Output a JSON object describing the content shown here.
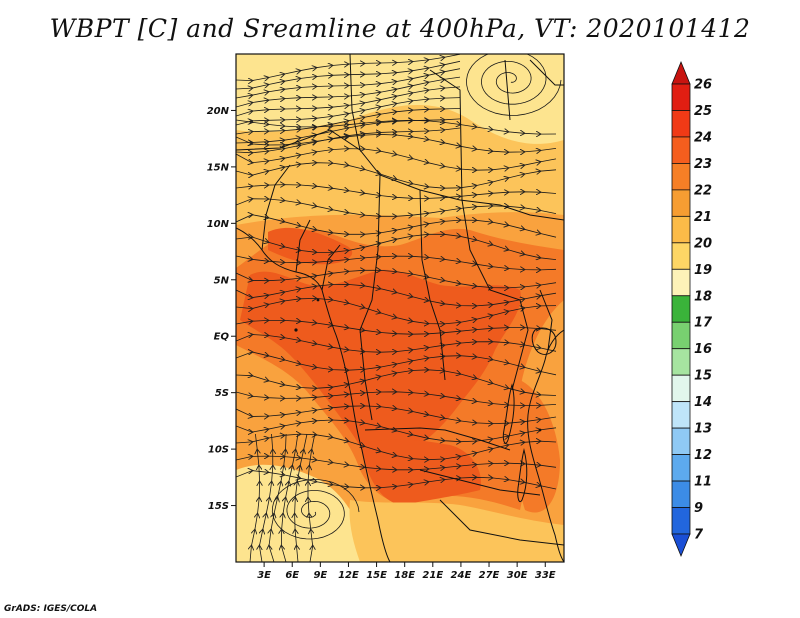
{
  "title": "WBPT [C] and Sreamline at 400hPa, VT: 2020101412",
  "credit": "GrADS: IGES/COLA",
  "map": {
    "latitude_labels": [
      "20N",
      "15N",
      "10N",
      "5N",
      "EQ",
      "5S",
      "10S",
      "15S"
    ],
    "latitude_values": [
      20,
      15,
      10,
      5,
      0,
      -5,
      -10,
      -15
    ],
    "longitude_labels": [
      "3E",
      "6E",
      "9E",
      "12E",
      "15E",
      "18E",
      "21E",
      "24E",
      "27E",
      "30E",
      "33E"
    ],
    "longitude_values": [
      3,
      6,
      9,
      12,
      15,
      18,
      21,
      24,
      27,
      30,
      33
    ],
    "lon_range": [
      0,
      35
    ],
    "lat_range": [
      -20,
      25
    ],
    "fill_palette": {
      "t19": "#fde48f",
      "t20": "#fcc45a",
      "t21": "#f9a23e",
      "t22": "#f47a28",
      "t23": "#ee5b1d"
    }
  },
  "colorbar": {
    "labels": [
      "26",
      "25",
      "24",
      "23",
      "22",
      "21",
      "20",
      "19",
      "18",
      "17",
      "16",
      "15",
      "14",
      "13",
      "12",
      "11",
      "9",
      "7"
    ],
    "colors": [
      "#c81410",
      "#e01e12",
      "#f03a16",
      "#f55e1e",
      "#f67f26",
      "#f69d32",
      "#fbbb48",
      "#fdd665",
      "#fdf2b8",
      "#3ab33a",
      "#78d070",
      "#a6e4a0",
      "#e2f6ec",
      "#bfe5f9",
      "#8fc9f4",
      "#5daaee",
      "#3c8ce6",
      "#2266dd",
      "#1a4fd6"
    ]
  }
}
